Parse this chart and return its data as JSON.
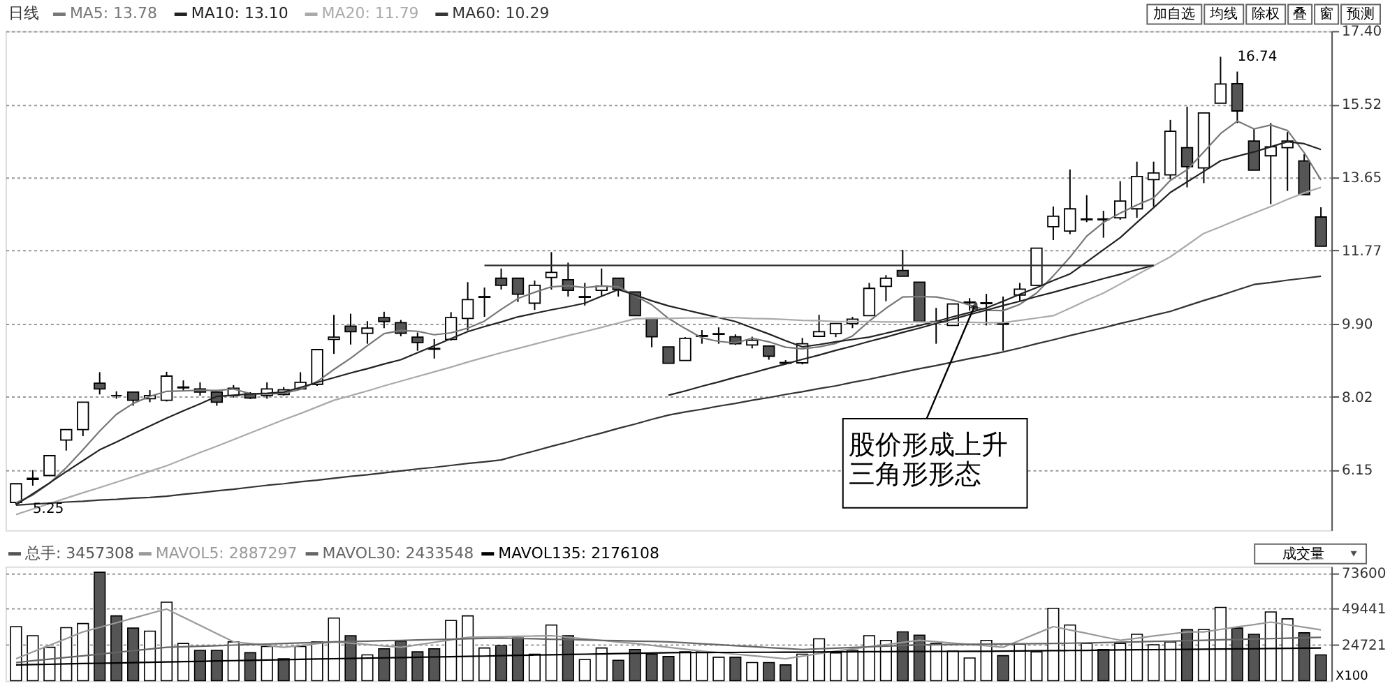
{
  "chart_data": [
    {
      "type": "candlestick",
      "title": "日线",
      "legend": "top left",
      "grid": "y",
      "tick_labels": "y",
      "categories": [
        null,
        null,
        null,
        null,
        null,
        null,
        null,
        null,
        null,
        null,
        null,
        null,
        null,
        null,
        null,
        null,
        null,
        null,
        null,
        null,
        null,
        null,
        null,
        null,
        null,
        null,
        null,
        null,
        null,
        null,
        null,
        null,
        null,
        null,
        null,
        null,
        null,
        null,
        null,
        null,
        null,
        null,
        null,
        null,
        null,
        null,
        null,
        null,
        null,
        null,
        null,
        null,
        null,
        null,
        null,
        null,
        null,
        null,
        null,
        null,
        null,
        null,
        null,
        null,
        null,
        null,
        null,
        null,
        null,
        null,
        null,
        null,
        null,
        null,
        null,
        null,
        null,
        null,
        null
      ],
      "ohlc": [
        [
          5.31,
          5.79,
          5.25,
          5.79
        ],
        [
          5.9,
          6.14,
          5.74,
          5.93
        ],
        [
          6.0,
          6.51,
          6.0,
          6.51
        ],
        [
          6.91,
          7.18,
          6.64,
          7.18
        ],
        [
          7.18,
          7.88,
          7.01,
          7.88
        ],
        [
          8.37,
          8.65,
          8.08,
          8.22
        ],
        [
          8.05,
          8.16,
          7.97,
          8.05
        ],
        [
          8.14,
          8.14,
          7.79,
          7.93
        ],
        [
          7.97,
          8.19,
          7.88,
          8.05
        ],
        [
          7.93,
          8.66,
          7.9,
          8.55
        ],
        [
          8.25,
          8.44,
          8.16,
          8.27
        ],
        [
          8.22,
          8.39,
          8.05,
          8.14
        ],
        [
          8.14,
          8.14,
          7.79,
          7.88
        ],
        [
          8.05,
          8.32,
          8.0,
          8.24
        ],
        [
          8.1,
          8.14,
          7.96,
          7.99
        ],
        [
          8.05,
          8.39,
          7.97,
          8.22
        ],
        [
          8.08,
          8.27,
          8.05,
          8.2
        ],
        [
          8.22,
          8.65,
          8.2,
          8.39
        ],
        [
          8.34,
          9.23,
          8.3,
          9.23
        ],
        [
          9.49,
          10.12,
          9.12,
          9.55
        ],
        [
          9.83,
          10.15,
          9.36,
          9.69
        ],
        [
          9.65,
          9.96,
          9.38,
          9.78
        ],
        [
          10.05,
          10.2,
          9.78,
          9.95
        ],
        [
          9.92,
          9.99,
          9.57,
          9.65
        ],
        [
          9.55,
          9.67,
          9.2,
          9.41
        ],
        [
          9.24,
          9.5,
          9.0,
          9.26
        ],
        [
          9.49,
          10.19,
          9.46,
          10.05
        ],
        [
          10.03,
          10.96,
          9.72,
          10.51
        ],
        [
          10.57,
          10.82,
          10.07,
          10.59
        ],
        [
          11.06,
          11.31,
          10.77,
          10.88
        ],
        [
          11.06,
          11.06,
          10.45,
          10.65
        ],
        [
          10.42,
          11.0,
          10.25,
          10.88
        ],
        [
          11.08,
          11.73,
          10.77,
          11.21
        ],
        [
          11.02,
          11.46,
          10.59,
          10.75
        ],
        [
          10.57,
          10.94,
          10.36,
          10.59
        ],
        [
          10.75,
          11.31,
          10.59,
          10.86
        ],
        [
          11.06,
          11.06,
          10.59,
          10.77
        ],
        [
          10.71,
          10.71,
          10.1,
          10.1
        ],
        [
          10.03,
          10.03,
          9.29,
          9.56
        ],
        [
          9.3,
          9.3,
          8.88,
          8.88
        ],
        [
          8.95,
          9.55,
          8.95,
          9.52
        ],
        [
          9.57,
          9.73,
          9.38,
          9.59
        ],
        [
          9.62,
          9.8,
          9.38,
          9.64
        ],
        [
          9.56,
          9.62,
          9.35,
          9.38
        ],
        [
          9.35,
          9.56,
          9.26,
          9.47
        ],
        [
          9.32,
          9.32,
          8.97,
          9.06
        ],
        [
          8.88,
          8.96,
          8.85,
          8.9
        ],
        [
          8.89,
          9.53,
          8.85,
          9.38
        ],
        [
          9.57,
          10.12,
          9.55,
          9.69
        ],
        [
          9.64,
          9.9,
          9.55,
          9.9
        ],
        [
          9.9,
          10.07,
          9.78,
          10.01
        ],
        [
          10.1,
          10.94,
          10.1,
          10.8
        ],
        [
          10.85,
          11.14,
          10.47,
          11.06
        ],
        [
          11.26,
          11.79,
          11.11,
          11.11
        ],
        [
          10.96,
          10.96,
          9.95,
          9.95
        ],
        [
          9.93,
          10.3,
          9.38,
          9.95
        ],
        [
          9.85,
          10.4,
          9.85,
          10.4
        ],
        [
          10.43,
          10.55,
          10.23,
          10.45
        ],
        [
          10.41,
          10.66,
          9.85,
          10.43
        ],
        [
          9.88,
          10.59,
          9.2,
          9.9
        ],
        [
          10.63,
          10.94,
          10.47,
          10.78
        ],
        [
          10.88,
          11.83,
          10.86,
          11.83
        ],
        [
          12.38,
          12.9,
          12.04,
          12.65
        ],
        [
          12.27,
          13.85,
          12.19,
          12.84
        ],
        [
          12.56,
          13.19,
          12.5,
          12.58
        ],
        [
          12.58,
          12.79,
          12.1,
          12.56
        ],
        [
          12.61,
          13.55,
          12.56,
          13.04
        ],
        [
          12.84,
          14.05,
          12.61,
          13.67
        ],
        [
          13.59,
          14.05,
          12.9,
          13.76
        ],
        [
          13.71,
          15.12,
          13.6,
          14.83
        ],
        [
          14.41,
          15.46,
          13.39,
          13.92
        ],
        [
          13.89,
          15.3,
          13.5,
          15.3
        ],
        [
          15.55,
          16.74,
          15.55,
          16.04
        ],
        [
          16.05,
          16.36,
          15.04,
          15.35
        ],
        [
          14.58,
          14.89,
          13.83,
          13.83
        ],
        [
          14.2,
          15.04,
          12.96,
          14.43
        ],
        [
          14.41,
          14.81,
          13.3,
          14.58
        ],
        [
          14.07,
          14.24,
          13.2,
          13.2
        ],
        [
          12.63,
          12.88,
          11.88,
          11.88
        ]
      ],
      "colors": [
        "#ffffff",
        "#ffffff",
        "#ffffff",
        "#ffffff",
        "#ffffff",
        "#555555",
        "#000000",
        "#555555",
        "#ffffff",
        "#ffffff",
        "#ffffff",
        "#555555",
        "#555555",
        "#ffffff",
        "#555555",
        "#ffffff",
        "#ffffff",
        "#ffffff",
        "#ffffff",
        "#ffffff",
        "#555555",
        "#ffffff",
        "#555555",
        "#555555",
        "#555555",
        "#ffffff",
        "#ffffff",
        "#ffffff",
        "#ffffff",
        "#555555",
        "#555555",
        "#ffffff",
        "#ffffff",
        "#555555",
        "#ffffff",
        "#ffffff",
        "#555555",
        "#555555",
        "#555555",
        "#555555",
        "#ffffff",
        "#ffffff",
        "#ffffff",
        "#555555",
        "#ffffff",
        "#555555",
        "#ffffff",
        "#ffffff",
        "#ffffff",
        "#ffffff",
        "#ffffff",
        "#ffffff",
        "#ffffff",
        "#555555",
        "#555555",
        "#ffffff",
        "#ffffff",
        "#ffffff",
        "#ffffff",
        "#ffffff",
        "#ffffff",
        "#ffffff",
        "#ffffff",
        "#ffffff",
        "#ffffff",
        "#555555",
        "#ffffff",
        "#ffffff",
        "#ffffff",
        "#ffffff",
        "#555555",
        "#ffffff",
        "#ffffff",
        "#555555",
        "#555555",
        "#ffffff",
        "#ffffff",
        "#555555",
        "#555555"
      ],
      "series": [
        {
          "name": "MA5: 13.78",
          "type": "line",
          "color": "#777777",
          "values": [
            5.3,
            5.5,
            5.8,
            6.2,
            6.66,
            7.14,
            7.57,
            7.85,
            8.03,
            8.16,
            8.17,
            8.19,
            8.18,
            8.22,
            8.1,
            8.09,
            8.11,
            8.21,
            8.41,
            8.72,
            9.01,
            9.33,
            9.64,
            9.72,
            9.7,
            9.61,
            9.66,
            9.78,
            9.96,
            10.26,
            10.54,
            10.7,
            10.84,
            10.87,
            10.82,
            10.86,
            10.84,
            10.61,
            10.38,
            10.03,
            9.77,
            9.53,
            9.44,
            9.4,
            9.52,
            9.43,
            9.29,
            9.25,
            9.3,
            9.39,
            9.58,
            9.96,
            10.29,
            10.58,
            10.59,
            10.58,
            10.5,
            10.37,
            10.24,
            10.23,
            10.39,
            10.68,
            11.12,
            11.6,
            12.14,
            12.49,
            12.73,
            12.94,
            13.12,
            13.57,
            13.84,
            14.3,
            14.77,
            15.09,
            14.89,
            14.99,
            14.85,
            14.28,
            13.58
          ]
        },
        {
          "name": "MA10: 13.10",
          "type": "line",
          "color": "#222222",
          "values": [
            5.25,
            5.53,
            5.81,
            6.1,
            6.38,
            6.66,
            6.86,
            7.07,
            7.27,
            7.47,
            7.66,
            7.84,
            8.03,
            8.06,
            8.09,
            8.11,
            8.14,
            8.26,
            8.39,
            8.51,
            8.63,
            8.74,
            8.86,
            8.97,
            9.15,
            9.33,
            9.51,
            9.69,
            9.82,
            9.94,
            10.07,
            10.16,
            10.25,
            10.33,
            10.42,
            10.6,
            10.77,
            10.63,
            10.48,
            10.35,
            10.25,
            10.15,
            10.05,
            9.95,
            9.79,
            9.63,
            9.46,
            9.3,
            9.36,
            9.43,
            9.49,
            9.55,
            9.65,
            9.75,
            9.85,
            9.95,
            10.07,
            10.18,
            10.3,
            10.47,
            10.65,
            10.82,
            11.0,
            11.17,
            11.48,
            11.79,
            12.1,
            12.49,
            12.87,
            13.26,
            13.53,
            13.8,
            14.07,
            14.19,
            14.3,
            14.43,
            14.56,
            14.51,
            14.36
          ]
        },
        {
          "name": "MA20: 11.79",
          "type": "line",
          "color": "#aaaaaa",
          "values": [
            5.0,
            5.14,
            5.28,
            5.42,
            5.56,
            5.69,
            5.83,
            5.97,
            6.11,
            6.25,
            6.42,
            6.59,
            6.75,
            6.92,
            7.09,
            7.26,
            7.43,
            7.59,
            7.76,
            7.93,
            8.05,
            8.17,
            8.3,
            8.42,
            8.54,
            8.66,
            8.78,
            8.91,
            9.03,
            9.15,
            9.26,
            9.37,
            9.48,
            9.59,
            9.69,
            9.8,
            9.91,
            10.02,
            10.03,
            10.03,
            10.04,
            10.04,
            10.05,
            10.05,
            10.03,
            10.02,
            10.0,
            9.98,
            9.97,
            9.95,
            9.95,
            9.95,
            9.94,
            9.94,
            9.94,
            9.93,
            9.93,
            9.93,
            9.92,
            9.92,
            9.98,
            10.04,
            10.1,
            10.29,
            10.49,
            10.68,
            10.91,
            11.15,
            11.38,
            11.61,
            11.91,
            12.21,
            12.38,
            12.56,
            12.73,
            12.9,
            13.08,
            13.25,
            13.39
          ]
        },
        {
          "name": "MA60: 10.29",
          "type": "line",
          "color": "#333333",
          "values": [
            5.24,
            5.27,
            5.29,
            5.32,
            5.34,
            5.37,
            5.39,
            5.42,
            5.44,
            5.47,
            5.52,
            5.56,
            5.61,
            5.65,
            5.7,
            5.75,
            5.79,
            5.84,
            5.88,
            5.93,
            5.98,
            6.02,
            6.07,
            6.12,
            6.17,
            6.21,
            6.26,
            6.31,
            6.35,
            6.4,
            6.52,
            6.63,
            6.75,
            6.86,
            6.98,
            7.09,
            7.21,
            7.32,
            7.44,
            7.55,
            7.63,
            7.7,
            7.78,
            7.85,
            7.93,
            8.0,
            8.08,
            8.15,
            8.23,
            8.3,
            8.39,
            8.47,
            8.56,
            8.65,
            8.74,
            8.82,
            8.91,
            9.0,
            9.08,
            9.17,
            9.27,
            9.38,
            9.48,
            9.59,
            9.69,
            9.79,
            9.9,
            10.0,
            10.11,
            10.21,
            10.35,
            10.49,
            10.62,
            10.76,
            10.9,
            10.95,
            11.01,
            11.06,
            11.11
          ]
        },
        {
          "type": "line",
          "color": "#333333",
          "values": [
            null,
            null,
            null,
            null,
            null,
            null,
            null,
            null,
            null,
            null,
            null,
            null,
            null,
            null,
            null,
            null,
            null,
            null,
            null,
            null,
            null,
            null,
            null,
            null,
            null,
            null,
            null,
            null,
            11.39,
            11.39,
            11.39,
            11.39,
            11.39,
            11.39,
            11.39,
            11.39,
            11.39,
            11.39,
            11.39,
            11.39,
            11.39,
            11.39,
            11.39,
            11.39,
            11.39,
            11.39,
            11.39,
            11.39,
            11.39,
            11.39,
            11.39,
            11.39,
            11.39,
            11.39,
            11.39,
            11.39,
            11.39,
            11.39,
            11.39,
            11.39,
            11.39,
            11.39,
            11.39,
            11.39,
            11.39,
            11.39,
            11.39,
            11.39,
            11.39,
            null,
            null,
            null,
            null,
            null,
            null,
            null,
            null,
            null,
            null
          ]
        },
        {
          "type": "line",
          "color": "#222222",
          "values": [
            null,
            null,
            null,
            null,
            null,
            null,
            null,
            null,
            null,
            null,
            null,
            null,
            null,
            null,
            null,
            null,
            null,
            null,
            null,
            null,
            null,
            null,
            null,
            null,
            null,
            null,
            null,
            null,
            null,
            null,
            null,
            null,
            null,
            null,
            null,
            null,
            null,
            null,
            null,
            8.06,
            8.17,
            8.29,
            8.4,
            8.52,
            8.63,
            8.75,
            8.86,
            8.98,
            9.09,
            9.21,
            9.32,
            9.44,
            9.55,
            9.67,
            9.78,
            9.9,
            10.01,
            10.13,
            10.24,
            10.36,
            10.47,
            10.59,
            10.7,
            10.82,
            10.93,
            11.05,
            11.16,
            11.28,
            11.39,
            null,
            null,
            null,
            null,
            null,
            null,
            null,
            null,
            null,
            null
          ]
        }
      ],
      "ylim": [
        4.6,
        17.4
      ],
      "yticks": [
        6.15,
        8.02,
        {
          "value": 9.9,
          "label": "9.90"
        },
        11.77,
        13.65,
        15.52,
        {
          "value": 17.4,
          "label": "17.40"
        }
      ],
      "annotations": [
        "16.74",
        "5.25",
        "股价形成上升三角形形态",
        "加自选",
        "均线",
        "除权",
        "叠",
        "窗",
        "预测"
      ]
    },
    {
      "type": "bar",
      "legend": "top left",
      "grid": "y",
      "tick_labels": "y",
      "categories": [
        null,
        null,
        null,
        null,
        null,
        null,
        null,
        null,
        null,
        null,
        null,
        null,
        null,
        null,
        null,
        null,
        null,
        null,
        null,
        null,
        null,
        null,
        null,
        null,
        null,
        null,
        null,
        null,
        null,
        null,
        null,
        null,
        null,
        null,
        null,
        null,
        null,
        null,
        null,
        null,
        null,
        null,
        null,
        null,
        null,
        null,
        null,
        null,
        null,
        null,
        null,
        null,
        null,
        null,
        null,
        null,
        null,
        null,
        null,
        null,
        null,
        null,
        null,
        null,
        null,
        null,
        null,
        null,
        null,
        null,
        null,
        null,
        null,
        null,
        null,
        null,
        null,
        null,
        null
      ],
      "series": [
        {
          "name": "总手: 3457308",
          "type": "bar",
          "color": "#555555",
          "values": [
            36900,
            30700,
            22800,
            36200,
            39000,
            74000,
            44200,
            35900,
            33800,
            53600,
            25400,
            20700,
            20700,
            26500,
            19100,
            23300,
            15000,
            23300,
            26500,
            42700,
            30700,
            17600,
            21800,
            27000,
            19700,
            21800,
            41100,
            44200,
            22300,
            23900,
            29100,
            18100,
            38000,
            30700,
            14400,
            22300,
            13900,
            21300,
            18100,
            16500,
            19700,
            19700,
            16000,
            16000,
            12400,
            12400,
            10800,
            18100,
            28600,
            18900,
            20700,
            30700,
            27500,
            33300,
            31100,
            25400,
            20200,
            15500,
            27500,
            17100,
            24900,
            19700,
            49400,
            38000,
            25400,
            21300,
            25400,
            31700,
            24500,
            26500,
            34900,
            34900,
            50000,
            35900,
            31700,
            46900,
            42200,
            32700,
            17600
          ],
          "colors": [
            "#ffffff",
            "#ffffff",
            "#ffffff",
            "#ffffff",
            "#ffffff",
            "#555555",
            "#555555",
            "#555555",
            "#ffffff",
            "#ffffff",
            "#ffffff",
            "#555555",
            "#555555",
            "#ffffff",
            "#555555",
            "#ffffff",
            "#555555",
            "#ffffff",
            "#ffffff",
            "#ffffff",
            "#555555",
            "#ffffff",
            "#555555",
            "#555555",
            "#555555",
            "#555555",
            "#ffffff",
            "#ffffff",
            "#ffffff",
            "#555555",
            "#555555",
            "#ffffff",
            "#ffffff",
            "#555555",
            "#ffffff",
            "#ffffff",
            "#555555",
            "#555555",
            "#555555",
            "#555555",
            "#ffffff",
            "#ffffff",
            "#ffffff",
            "#555555",
            "#ffffff",
            "#555555",
            "#555555",
            "#ffffff",
            "#ffffff",
            "#ffffff",
            "#ffffff",
            "#ffffff",
            "#ffffff",
            "#555555",
            "#555555",
            "#ffffff",
            "#ffffff",
            "#ffffff",
            "#ffffff",
            "#555555",
            "#ffffff",
            "#ffffff",
            "#ffffff",
            "#ffffff",
            "#ffffff",
            "#555555",
            "#ffffff",
            "#ffffff",
            "#ffffff",
            "#ffffff",
            "#555555",
            "#ffffff",
            "#ffffff",
            "#555555",
            "#555555",
            "#ffffff",
            "#ffffff",
            "#555555",
            "#555555"
          ]
        },
        {
          "name": "MAVOL5: 2887297",
          "type": "line",
          "color": "#999999",
          "values": [
            15000,
            19600,
            24200,
            28700,
            33300,
            36400,
            39500,
            42700,
            45800,
            48900,
            43300,
            37700,
            32100,
            26500,
            25300,
            24000,
            22800,
            24000,
            25300,
            26500,
            25600,
            24700,
            23700,
            22800,
            24500,
            26200,
            27900,
            29600,
            29800,
            30000,
            30300,
            30500,
            30700,
            29600,
            28500,
            27500,
            26400,
            25400,
            24100,
            22800,
            21500,
            20200,
            19200,
            18100,
            17100,
            16000,
            15000,
            16700,
            18500,
            20200,
            21700,
            23200,
            24600,
            26100,
            27600,
            26600,
            25700,
            24700,
            23800,
            22800,
            27500,
            32200,
            36900,
            34600,
            32300,
            29900,
            27600,
            29000,
            30500,
            31900,
            33300,
            33300,
            35000,
            36700,
            38300,
            40000,
            38200,
            36500,
            34700
          ]
        },
        {
          "name": "MAVOL30: 2433548",
          "type": "line",
          "color": "#666666",
          "values": [
            12400,
            13600,
            14700,
            15900,
            17000,
            18200,
            19300,
            20500,
            21600,
            22800,
            23200,
            23500,
            23900,
            24300,
            24700,
            25000,
            25400,
            25800,
            26100,
            26500,
            26800,
            27000,
            27300,
            27500,
            27800,
            28100,
            28300,
            28600,
            28800,
            29100,
            28800,
            28600,
            28300,
            28100,
            27800,
            27500,
            27300,
            27000,
            26800,
            26500,
            25900,
            25200,
            24600,
            23900,
            23300,
            22600,
            22000,
            21300,
            21800,
            22200,
            22700,
            23100,
            23600,
            24000,
            24500,
            24600,
            24700,
            24800,
            24900,
            25100,
            25200,
            25300,
            25400,
            25600,
            25800,
            26000,
            26300,
            26500,
            26800,
            27000,
            27300,
            27600,
            27900,
            28200,
            28500,
            28700,
            29000,
            29300,
            29600
          ]
        },
        {
          "name": "MAVOL135: 2176108",
          "type": "line",
          "color": "#000000",
          "values": [
            10800,
            11000,
            11200,
            11500,
            11700,
            11900,
            12100,
            12300,
            12600,
            12800,
            13000,
            13200,
            13500,
            13700,
            13900,
            14100,
            14300,
            14600,
            14800,
            15000,
            15200,
            15400,
            15600,
            15800,
            16000,
            16200,
            16400,
            16600,
            16800,
            17100,
            17300,
            17500,
            17700,
            17900,
            18100,
            18300,
            18500,
            18700,
            18900,
            19100,
            19200,
            19200,
            19300,
            19300,
            19400,
            19400,
            19500,
            19500,
            19600,
            19700,
            19700,
            19800,
            19800,
            19900,
            19900,
            20000,
            20000,
            20100,
            20100,
            20200,
            20300,
            20400,
            20500,
            20600,
            20700,
            20900,
            21000,
            21100,
            21200,
            21300,
            21400,
            21500,
            21600,
            21700,
            21800,
            22000,
            22100,
            22200,
            22300
          ]
        }
      ],
      "ylim": [
        0,
        78000
      ],
      "yticks": [
        24721,
        49441,
        73600
      ],
      "annotations": [
        "成交量",
        "X100"
      ]
    }
  ]
}
